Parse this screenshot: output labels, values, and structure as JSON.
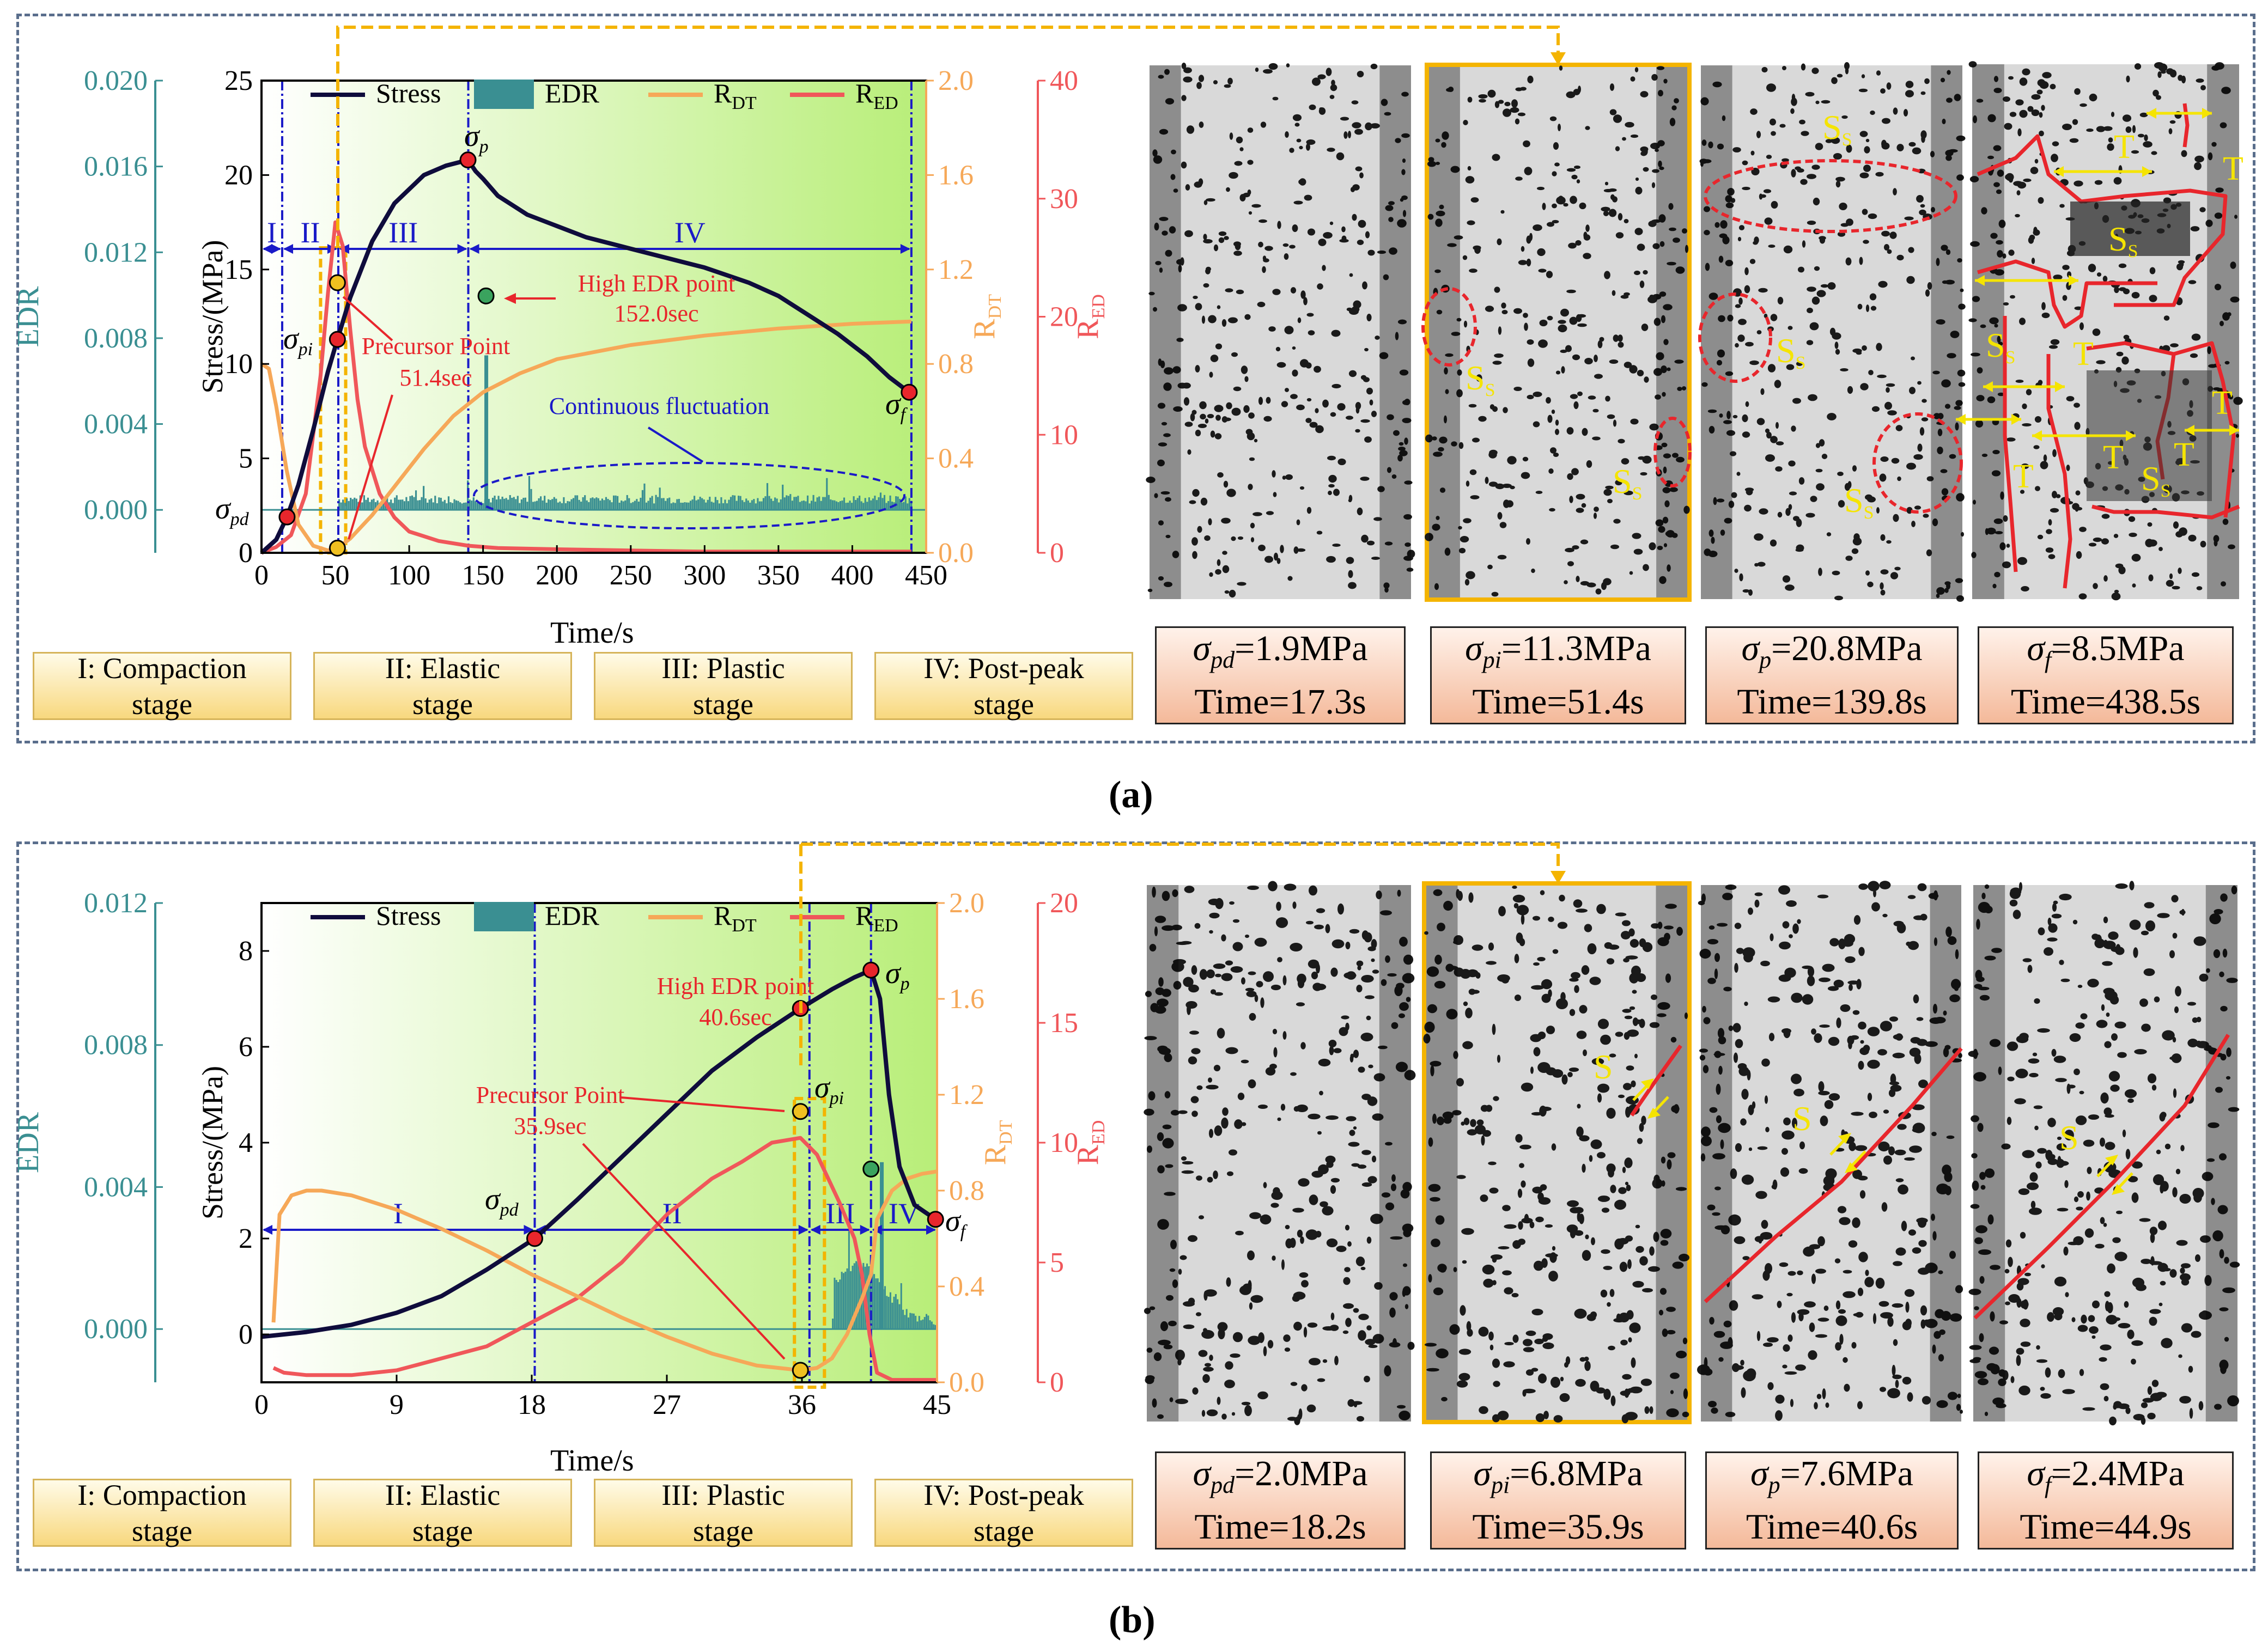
{
  "colors": {
    "stress": "#0f0c3c",
    "edr": "#3a8f92",
    "rdt": "#f6a858",
    "red": "#f0575a",
    "frame": "#5a6e8c",
    "gold": "#f4b400",
    "blue": "#1a1ac8",
    "green": "#3aa35e"
  },
  "stage_labels": [
    {
      "line1": "I: Compaction",
      "line2": "stage"
    },
    {
      "line1": "II: Elastic",
      "line2": "stage"
    },
    {
      "line1": "III: Plastic",
      "line2": "stage"
    },
    {
      "line1": "IV: Post-peak",
      "line2": "stage"
    }
  ],
  "panels": [
    {
      "label": "(a)",
      "xlabel": "Time/s",
      "legend": [
        "Stress",
        "EDR",
        "R",
        "R"
      ],
      "legend_subs": [
        "",
        "",
        "DT",
        "ED"
      ],
      "ax_names": {
        "edr": "EDR",
        "stress": "Stress/(MPa)",
        "rdt_main": "R",
        "rdt_sub": "DT",
        "red_main": "R",
        "red_sub": "ED"
      },
      "stage_roman": [
        "I",
        "II",
        "III",
        "IV"
      ],
      "points": {
        "pd": "σpd",
        "pi": "σpi",
        "p": "σp",
        "f": "σf"
      },
      "point_names": [
        {
          "main": "σ",
          "sub": "pd"
        },
        {
          "main": "σ",
          "sub": "pi"
        },
        {
          "main": "σ",
          "sub": "p"
        },
        {
          "main": "σ",
          "sub": "f"
        }
      ],
      "annotations": {
        "high_edr": [
          "High EDR point",
          "152.0sec"
        ],
        "precursor": [
          "Precursor Point",
          "51.4sec"
        ],
        "fluct": "Continuous fluctuation"
      },
      "info": [
        {
          "sym": "σ",
          "sub": "pd",
          "val": "=1.9MPa",
          "time": "Time=17.3s"
        },
        {
          "sym": "σ",
          "sub": "pi",
          "val": "=11.3MPa",
          "time": "Time=51.4s"
        },
        {
          "sym": "σ",
          "sub": "p",
          "val": "=20.8MPa",
          "time": "Time=139.8s"
        },
        {
          "sym": "σ",
          "sub": "f",
          "val": "=8.5MPa",
          "time": "Time=438.5s"
        }
      ],
      "photo_labels": {
        "ss": "S",
        "ss_sub": "S",
        "t": "T"
      }
    },
    {
      "label": "(b)",
      "xlabel": "Time/s",
      "legend": [
        "Stress",
        "EDR",
        "R",
        "R"
      ],
      "legend_subs": [
        "",
        "",
        "DT",
        "ED"
      ],
      "ax_names": {
        "edr": "EDR",
        "stress": "Stress/(MPa)",
        "rdt_main": "R",
        "rdt_sub": "DT",
        "red_main": "R",
        "red_sub": "ED"
      },
      "stage_roman": [
        "I",
        "II",
        "III",
        "IV"
      ],
      "point_names": [
        {
          "main": "σ",
          "sub": "pd"
        },
        {
          "main": "σ",
          "sub": "pi"
        },
        {
          "main": "σ",
          "sub": "p"
        },
        {
          "main": "σ",
          "sub": "f"
        }
      ],
      "annotations": {
        "high_edr": [
          "High EDR point",
          "40.6sec"
        ],
        "precursor": [
          "Precursor Point",
          "35.9sec"
        ]
      },
      "info": [
        {
          "sym": "σ",
          "sub": "pd",
          "val": "=2.0MPa",
          "time": "Time=18.2s"
        },
        {
          "sym": "σ",
          "sub": "pi",
          "val": "=6.8MPa",
          "time": "Time=35.9s"
        },
        {
          "sym": "σ",
          "sub": "p",
          "val": "=7.6MPa",
          "time": "Time=40.6s"
        },
        {
          "sym": "σ",
          "sub": "f",
          "val": "=2.4MPa",
          "time": "Time=44.9s"
        }
      ],
      "photo_labels": {
        "s": "S"
      }
    }
  ],
  "chart_data": [
    {
      "type": "line",
      "title": "(a)",
      "xlabel": "Time/s",
      "x_ticks": [
        0,
        50,
        100,
        150,
        200,
        250,
        300,
        350,
        400,
        450
      ],
      "xlim": [
        0,
        450
      ],
      "axes": {
        "edr": {
          "label": "EDR",
          "ylim": [
            -0.002,
            0.02
          ],
          "ticks": [
            "0.000",
            "0.004",
            "0.008",
            "0.012",
            "0.016",
            "0.020"
          ]
        },
        "stress": {
          "label": "Stress/(MPa)",
          "ylim": [
            0,
            25
          ],
          "ticks": [
            "0",
            "5",
            "10",
            "15",
            "20",
            "25"
          ]
        },
        "rdt": {
          "label": "RDT",
          "ylim": [
            0,
            2.0
          ],
          "ticks": [
            "0.0",
            "0.4",
            "0.8",
            "1.2",
            "1.6",
            "2.0"
          ]
        },
        "red": {
          "label": "RED",
          "ylim": [
            0,
            40
          ],
          "ticks": [
            "0",
            "10",
            "20",
            "30",
            "40"
          ]
        }
      },
      "series": [
        {
          "name": "Stress",
          "axis": "stress",
          "x": [
            0,
            10,
            17.3,
            25,
            35,
            45,
            51.4,
            60,
            75,
            90,
            110,
            125,
            139.8,
            145,
            150,
            160,
            180,
            200,
            220,
            250,
            280,
            300,
            330,
            350,
            370,
            390,
            410,
            425,
            438.5
          ],
          "values": [
            0,
            0.7,
            1.9,
            3.6,
            6.5,
            9.6,
            11.3,
            13.5,
            16.5,
            18.5,
            20.0,
            20.5,
            20.8,
            20.2,
            19.8,
            18.9,
            17.9,
            17.3,
            16.7,
            16.1,
            15.5,
            15.1,
            14.3,
            13.6,
            12.6,
            11.6,
            10.4,
            9.3,
            8.5
          ]
        },
        {
          "name": "RDT",
          "axis": "rdt",
          "x": [
            0,
            5,
            10,
            17,
            25,
            35,
            45,
            51.4,
            60,
            75,
            90,
            110,
            130,
            150,
            175,
            200,
            250,
            300,
            350,
            400,
            440
          ],
          "values": [
            0.8,
            0.78,
            0.62,
            0.35,
            0.12,
            0.03,
            0.01,
            0.02,
            0.06,
            0.16,
            0.28,
            0.44,
            0.58,
            0.68,
            0.76,
            0.82,
            0.88,
            0.92,
            0.95,
            0.97,
            0.98
          ]
        },
        {
          "name": "RED",
          "axis": "red",
          "x": [
            0,
            10,
            20,
            30,
            40,
            45,
            50,
            55,
            60,
            65,
            70,
            80,
            90,
            100,
            120,
            140,
            160,
            200,
            250,
            300,
            350,
            400,
            440
          ],
          "values": [
            0,
            0.5,
            1.5,
            5,
            15,
            22,
            28,
            26,
            19,
            13,
            9,
            5,
            3,
            1.8,
            1,
            0.6,
            0.4,
            0.3,
            0.2,
            0.1,
            0.1,
            0.1,
            0.1
          ]
        },
        {
          "name": "EDR",
          "axis": "edr",
          "type": "bar",
          "note": "dense bars ~0.0002-0.0010 from ~55s to 440s, peak 0.0072 at 152.0s"
        }
      ],
      "stage_bounds": [
        0,
        14,
        52,
        140,
        440
      ],
      "stage_labels": [
        "I",
        "II",
        "III",
        "IV"
      ],
      "key_points": [
        {
          "name": "σpd",
          "x": 17.3,
          "stress": 1.9
        },
        {
          "name": "σpi",
          "x": 51.4,
          "stress": 11.3
        },
        {
          "name": "σp",
          "x": 139.8,
          "stress": 20.8
        },
        {
          "name": "σf",
          "x": 438.5,
          "stress": 8.5
        }
      ],
      "annotations": [
        "High EDR point 152.0sec",
        "Precursor Point 51.4sec",
        "Continuous fluctuation"
      ]
    },
    {
      "type": "line",
      "title": "(b)",
      "xlabel": "Time/s",
      "x_ticks": [
        0,
        9,
        18,
        27,
        36,
        45
      ],
      "xlim": [
        0,
        45
      ],
      "axes": {
        "edr": {
          "label": "EDR",
          "ylim": [
            -0.0015,
            0.012
          ],
          "ticks": [
            "0.000",
            "0.004",
            "0.008",
            "0.012"
          ]
        },
        "stress": {
          "label": "Stress/(MPa)",
          "ylim": [
            -1,
            9
          ],
          "ticks": [
            "0",
            "2",
            "4",
            "6",
            "8"
          ]
        },
        "rdt": {
          "label": "RDT",
          "ylim": [
            0,
            2.0
          ],
          "ticks": [
            "0.0",
            "0.4",
            "0.8",
            "1.2",
            "1.6",
            "2.0"
          ]
        },
        "red": {
          "label": "RED",
          "ylim": [
            0,
            20
          ],
          "ticks": [
            "0",
            "5",
            "10",
            "15",
            "20"
          ]
        }
      },
      "series": [
        {
          "name": "Stress",
          "axis": "stress",
          "x": [
            0,
            3,
            6,
            9,
            12,
            15,
            18.2,
            21,
            24,
            27,
            30,
            33,
            35.9,
            38,
            39.5,
            40.6,
            41.2,
            41.8,
            42.5,
            43.5,
            44.9
          ],
          "values": [
            -0.05,
            0.05,
            0.2,
            0.45,
            0.8,
            1.35,
            2.0,
            2.8,
            3.7,
            4.6,
            5.5,
            6.2,
            6.8,
            7.2,
            7.45,
            7.6,
            7.0,
            5.0,
            3.5,
            2.7,
            2.4
          ]
        },
        {
          "name": "RDT",
          "axis": "rdt",
          "x": [
            0.8,
            1.2,
            2,
            3,
            4,
            6,
            9,
            12,
            15,
            18,
            21,
            24,
            27,
            30,
            33,
            35.9,
            37,
            38,
            39,
            40,
            40.6,
            41,
            42,
            43,
            44,
            45
          ],
          "values": [
            0.25,
            0.7,
            0.78,
            0.8,
            0.8,
            0.78,
            0.72,
            0.64,
            0.55,
            0.45,
            0.36,
            0.27,
            0.19,
            0.12,
            0.07,
            0.05,
            0.06,
            0.1,
            0.2,
            0.35,
            0.45,
            0.68,
            0.8,
            0.85,
            0.87,
            0.88
          ]
        },
        {
          "name": "RED",
          "axis": "red",
          "x": [
            0.8,
            1.5,
            3,
            6,
            9,
            12,
            15,
            18,
            21,
            24,
            27,
            30,
            32,
            34,
            35.9,
            37,
            38.5,
            39.5,
            40,
            40.5,
            41,
            42,
            45
          ],
          "values": [
            0.6,
            0.4,
            0.3,
            0.3,
            0.5,
            1,
            1.5,
            2.5,
            3.5,
            5,
            7,
            8.5,
            9.2,
            10,
            10.2,
            9.5,
            7.5,
            6,
            4.5,
            2,
            0.4,
            0.1,
            0.1
          ]
        },
        {
          "name": "EDR",
          "axis": "edr",
          "type": "bar",
          "note": "near zero until ~38s, bars up to ~0.0047 near 41-43s"
        }
      ],
      "stage_bounds": [
        0,
        18.2,
        36.5,
        40.6,
        45
      ],
      "stage_labels": [
        "I",
        "II",
        "III",
        "IV"
      ],
      "key_points": [
        {
          "name": "σpd",
          "x": 18.2,
          "stress": 2.0
        },
        {
          "name": "σpi",
          "x": 35.9,
          "stress": 6.8
        },
        {
          "name": "σp",
          "x": 40.6,
          "stress": 7.6
        },
        {
          "name": "σf",
          "x": 44.9,
          "stress": 2.4
        }
      ],
      "annotations": [
        "High EDR point 40.6sec",
        "Precursor Point 35.9sec"
      ]
    }
  ]
}
